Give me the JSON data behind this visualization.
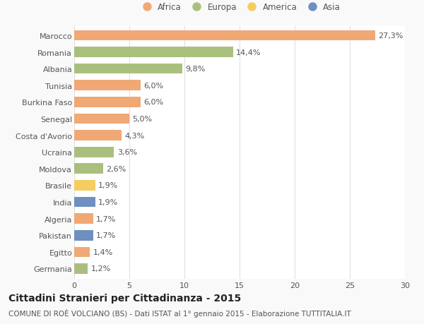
{
  "countries": [
    "Marocco",
    "Romania",
    "Albania",
    "Tunisia",
    "Burkina Faso",
    "Senegal",
    "Costa d'Avorio",
    "Ucraina",
    "Moldova",
    "Brasile",
    "India",
    "Algeria",
    "Pakistan",
    "Egitto",
    "Germania"
  ],
  "values": [
    27.3,
    14.4,
    9.8,
    6.0,
    6.0,
    5.0,
    4.3,
    3.6,
    2.6,
    1.9,
    1.9,
    1.7,
    1.7,
    1.4,
    1.2
  ],
  "labels": [
    "27,3%",
    "14,4%",
    "9,8%",
    "6,0%",
    "6,0%",
    "5,0%",
    "4,3%",
    "3,6%",
    "2,6%",
    "1,9%",
    "1,9%",
    "1,7%",
    "1,7%",
    "1,4%",
    "1,2%"
  ],
  "continents": [
    "Africa",
    "Europa",
    "Europa",
    "Africa",
    "Africa",
    "Africa",
    "Africa",
    "Europa",
    "Europa",
    "America",
    "Asia",
    "Africa",
    "Asia",
    "Africa",
    "Europa"
  ],
  "continent_colors": {
    "Africa": "#F0A875",
    "Europa": "#AABF7E",
    "America": "#F5CC60",
    "Asia": "#6E8FC0"
  },
  "legend_order": [
    "Africa",
    "Europa",
    "America",
    "Asia"
  ],
  "title": "Cittadini Stranieri per Cittadinanza - 2015",
  "subtitle": "COMUNE DI ROÈ VOLCIANO (BS) - Dati ISTAT al 1° gennaio 2015 - Elaborazione TUTTITALIA.IT",
  "xlim": [
    0,
    30
  ],
  "xticks": [
    0,
    5,
    10,
    15,
    20,
    25,
    30
  ],
  "bg_color": "#f9f9f9",
  "bar_bg_color": "#ffffff",
  "grid_color": "#e0e0e0",
  "text_color": "#555555",
  "title_fontsize": 10,
  "subtitle_fontsize": 7.5,
  "tick_fontsize": 8,
  "label_fontsize": 8,
  "legend_fontsize": 8.5
}
